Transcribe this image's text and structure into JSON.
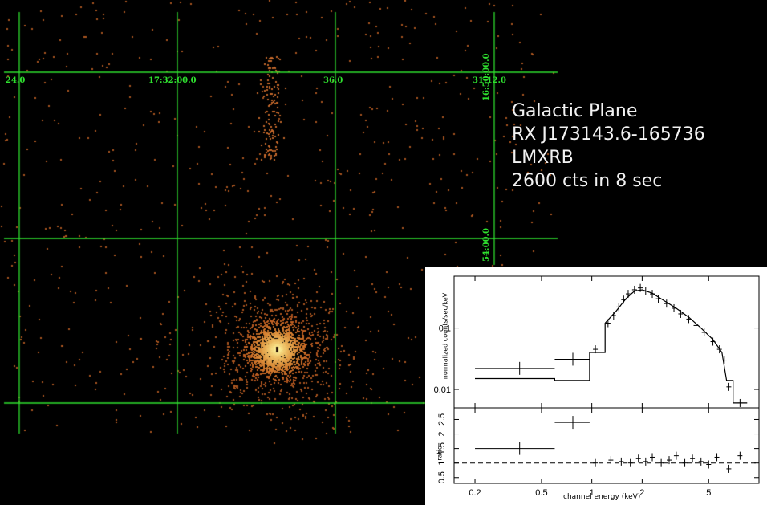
{
  "colors": {
    "grid": "#2fe02f",
    "photon_low": "#a8541f",
    "photon_high": "#fff4a8",
    "background": "#000000"
  },
  "image": {
    "ra_labels": [
      "24.0",
      "17:32:00.0",
      "36.0",
      "31:12.0"
    ],
    "dec_labels": [
      "16:50:00.0",
      "54:00.0"
    ]
  },
  "caption": {
    "field": "Galactic Plane",
    "source": "RX J173143.6-165736",
    "class": "LMXRB",
    "counts": "2600 cts in 8 sec"
  },
  "chart_data": {
    "type": "scatter",
    "xlabel": "channel energy (keV)",
    "xscale": "log",
    "x_ticks": [
      "0.2",
      "0.5",
      "1",
      "2",
      "5"
    ],
    "panels": [
      {
        "name": "spectrum",
        "ylabel": "normalized counts/sec/keV",
        "yscale": "log",
        "y_ticks": [
          "0.01",
          "0.1"
        ],
        "ylim": [
          0.005,
          0.7
        ],
        "data_points": [
          {
            "x": 0.37,
            "y": 0.022,
            "x_err": [
              0.2,
              0.6
            ]
          },
          {
            "x": 0.77,
            "y": 0.031,
            "x_err": [
              0.6,
              0.97
            ]
          },
          {
            "x": 1.05,
            "y": 0.045
          },
          {
            "x": 1.25,
            "y": 0.12
          },
          {
            "x": 1.35,
            "y": 0.16
          },
          {
            "x": 1.45,
            "y": 0.22
          },
          {
            "x": 1.55,
            "y": 0.29
          },
          {
            "x": 1.65,
            "y": 0.36
          },
          {
            "x": 1.8,
            "y": 0.42
          },
          {
            "x": 1.95,
            "y": 0.45
          },
          {
            "x": 2.1,
            "y": 0.4
          },
          {
            "x": 2.3,
            "y": 0.36
          },
          {
            "x": 2.5,
            "y": 0.3
          },
          {
            "x": 2.8,
            "y": 0.25
          },
          {
            "x": 3.1,
            "y": 0.21
          },
          {
            "x": 3.4,
            "y": 0.17
          },
          {
            "x": 3.8,
            "y": 0.14
          },
          {
            "x": 4.2,
            "y": 0.11
          },
          {
            "x": 4.7,
            "y": 0.085
          },
          {
            "x": 5.3,
            "y": 0.06
          },
          {
            "x": 5.8,
            "y": 0.045
          },
          {
            "x": 6.2,
            "y": 0.03
          },
          {
            "x": 6.6,
            "y": 0.011
          },
          {
            "x": 7.7,
            "y": 0.006
          }
        ],
        "model": [
          {
            "x": 0.2,
            "y": 0.015
          },
          {
            "x": 0.6,
            "y": 0.015
          },
          {
            "x": 0.6,
            "y": 0.014
          },
          {
            "x": 0.97,
            "y": 0.014
          },
          {
            "x": 0.97,
            "y": 0.04
          },
          {
            "x": 1.2,
            "y": 0.04
          },
          {
            "x": 1.2,
            "y": 0.12
          },
          {
            "x": 1.4,
            "y": 0.19
          },
          {
            "x": 1.6,
            "y": 0.3
          },
          {
            "x": 1.8,
            "y": 0.4
          },
          {
            "x": 2.0,
            "y": 0.42
          },
          {
            "x": 2.3,
            "y": 0.37
          },
          {
            "x": 2.7,
            "y": 0.28
          },
          {
            "x": 3.2,
            "y": 0.21
          },
          {
            "x": 3.8,
            "y": 0.15
          },
          {
            "x": 4.5,
            "y": 0.1
          },
          {
            "x": 5.3,
            "y": 0.065
          },
          {
            "x": 6.0,
            "y": 0.04
          },
          {
            "x": 6.4,
            "y": 0.014
          },
          {
            "x": 7.0,
            "y": 0.014
          },
          {
            "x": 7.0,
            "y": 0.006
          },
          {
            "x": 8.5,
            "y": 0.006
          }
        ]
      },
      {
        "name": "ratio",
        "ylabel": "ratio",
        "yscale": "linear",
        "y_ticks": [
          "0.5",
          "1",
          "1.5",
          "2",
          "2.5"
        ],
        "ylim": [
          0.3,
          2.9
        ],
        "reference_line": 1,
        "data_points": [
          {
            "x": 0.37,
            "y": 1.5,
            "x_err": [
              0.2,
              0.6
            ]
          },
          {
            "x": 0.77,
            "y": 2.4,
            "x_err": [
              0.6,
              0.97
            ]
          },
          {
            "x": 1.05,
            "y": 1.0
          },
          {
            "x": 1.3,
            "y": 1.1
          },
          {
            "x": 1.5,
            "y": 1.05
          },
          {
            "x": 1.7,
            "y": 1.0
          },
          {
            "x": 1.9,
            "y": 1.15
          },
          {
            "x": 2.1,
            "y": 1.05
          },
          {
            "x": 2.3,
            "y": 1.2
          },
          {
            "x": 2.6,
            "y": 1.0
          },
          {
            "x": 2.9,
            "y": 1.1
          },
          {
            "x": 3.2,
            "y": 1.25
          },
          {
            "x": 3.6,
            "y": 1.0
          },
          {
            "x": 4.0,
            "y": 1.15
          },
          {
            "x": 4.5,
            "y": 1.05
          },
          {
            "x": 5.0,
            "y": 0.95
          },
          {
            "x": 5.6,
            "y": 1.2
          },
          {
            "x": 6.6,
            "y": 0.8
          },
          {
            "x": 7.7,
            "y": 1.25
          }
        ]
      }
    ]
  }
}
